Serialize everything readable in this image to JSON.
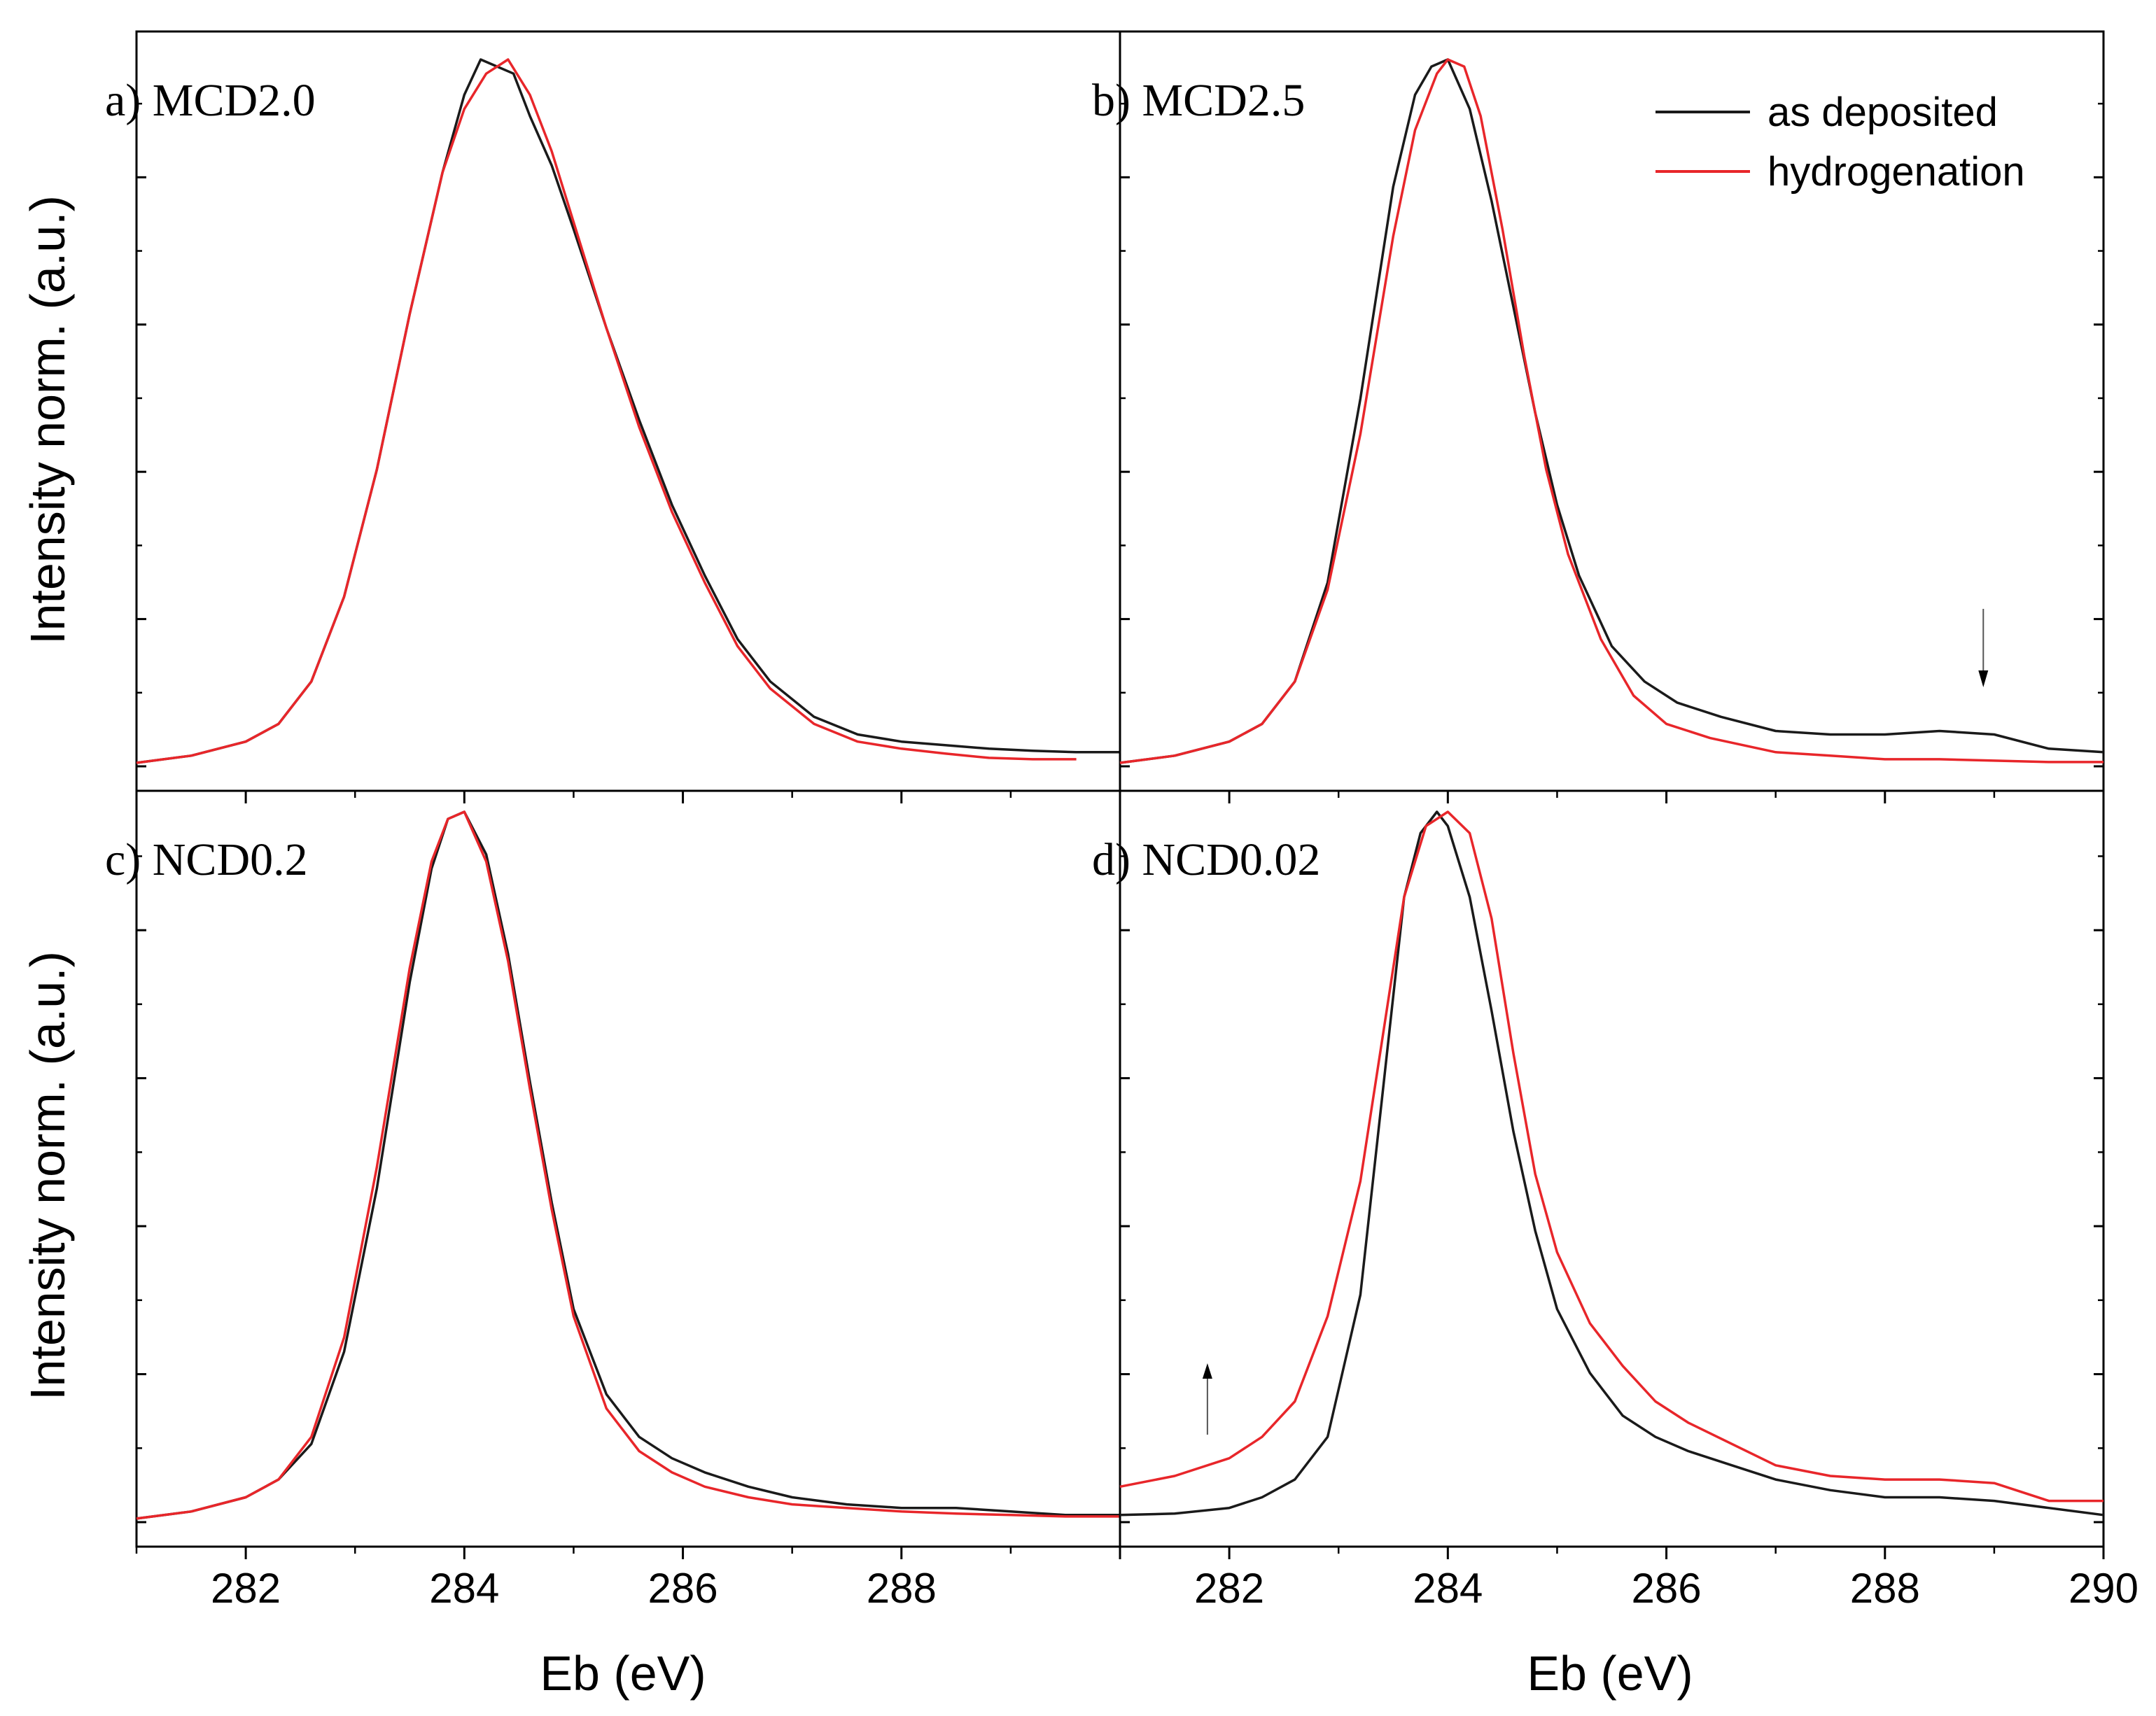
{
  "chart_data": {
    "type": "line",
    "title": "",
    "xlabel": "Eb (eV)",
    "ylabel": "Intensity norm. (a.u.)",
    "xlim": [
      281,
      290
    ],
    "ylim": [
      0,
      1
    ],
    "x_ticks": [
      "282",
      "284",
      "286",
      "288",
      "290"
    ],
    "legend": {
      "position": "top-right",
      "entries": [
        {
          "name": "as deposited",
          "color": "#1a1a1a"
        },
        {
          "name": "hydrogenation",
          "color": "#e8262a"
        }
      ]
    },
    "panels": [
      {
        "label": "a) MCD2.0",
        "series": [
          {
            "name": "as deposited",
            "color": "#1a1a1a",
            "x": [
              281.0,
              281.5,
              282.0,
              282.3,
              282.6,
              282.9,
              283.2,
              283.5,
              283.8,
              284.0,
              284.15,
              284.3,
              284.45,
              284.6,
              284.8,
              285.0,
              285.3,
              285.6,
              285.9,
              286.2,
              286.5,
              286.8,
              287.2,
              287.6,
              288.0,
              288.4,
              288.8,
              289.2,
              289.6,
              290.0
            ],
            "y": [
              0.005,
              0.015,
              0.035,
              0.06,
              0.12,
              0.24,
              0.42,
              0.64,
              0.84,
              0.95,
              1.0,
              0.99,
              0.98,
              0.92,
              0.85,
              0.76,
              0.62,
              0.49,
              0.37,
              0.27,
              0.18,
              0.12,
              0.07,
              0.045,
              0.035,
              0.03,
              0.025,
              0.022,
              0.02,
              0.02
            ]
          },
          {
            "name": "hydrogenation",
            "color": "#e8262a",
            "x": [
              281.0,
              281.5,
              282.0,
              282.3,
              282.6,
              282.9,
              283.2,
              283.5,
              283.8,
              284.0,
              284.2,
              284.4,
              284.6,
              284.8,
              285.0,
              285.3,
              285.6,
              285.9,
              286.2,
              286.5,
              286.8,
              287.2,
              287.6,
              288.0,
              288.4,
              288.8,
              289.2,
              289.6
            ],
            "y": [
              0.005,
              0.015,
              0.035,
              0.06,
              0.12,
              0.24,
              0.42,
              0.64,
              0.84,
              0.93,
              0.98,
              1.0,
              0.95,
              0.87,
              0.77,
              0.62,
              0.48,
              0.36,
              0.26,
              0.17,
              0.11,
              0.06,
              0.035,
              0.025,
              0.018,
              0.012,
              0.01,
              0.01
            ]
          }
        ]
      },
      {
        "label": "b) MCD2.5",
        "series": [
          {
            "name": "as deposited",
            "color": "#1a1a1a",
            "x": [
              281.0,
              281.5,
              282.0,
              282.3,
              282.6,
              282.9,
              283.2,
              283.5,
              283.7,
              283.85,
              284.0,
              284.2,
              284.4,
              284.6,
              284.8,
              285.0,
              285.2,
              285.5,
              285.8,
              286.1,
              286.5,
              287.0,
              287.5,
              288.0,
              288.5,
              289.0,
              289.5,
              290.0
            ],
            "y": [
              0.005,
              0.015,
              0.035,
              0.06,
              0.12,
              0.26,
              0.52,
              0.82,
              0.95,
              0.99,
              1.0,
              0.93,
              0.8,
              0.65,
              0.5,
              0.37,
              0.27,
              0.17,
              0.12,
              0.09,
              0.07,
              0.05,
              0.045,
              0.045,
              0.05,
              0.045,
              0.025,
              0.02
            ]
          },
          {
            "name": "hydrogenation",
            "color": "#e8262a",
            "x": [
              281.0,
              281.5,
              282.0,
              282.3,
              282.6,
              282.9,
              283.2,
              283.5,
              283.7,
              283.9,
              284.0,
              284.15,
              284.3,
              284.5,
              284.7,
              284.9,
              285.1,
              285.4,
              285.7,
              286.0,
              286.4,
              287.0,
              287.5,
              288.0,
              288.5,
              289.0,
              289.5,
              290.0
            ],
            "y": [
              0.005,
              0.015,
              0.035,
              0.06,
              0.12,
              0.25,
              0.47,
              0.75,
              0.9,
              0.98,
              1.0,
              0.99,
              0.92,
              0.76,
              0.58,
              0.42,
              0.3,
              0.18,
              0.1,
              0.06,
              0.04,
              0.02,
              0.015,
              0.01,
              0.01,
              0.008,
              0.006,
              0.006
            ]
          }
        ]
      },
      {
        "label": "c) NCD0.2",
        "series": [
          {
            "name": "as deposited",
            "color": "#1a1a1a",
            "x": [
              281.0,
              281.5,
              282.0,
              282.3,
              282.6,
              282.9,
              283.2,
              283.5,
              283.7,
              283.85,
              284.0,
              284.2,
              284.4,
              284.6,
              284.8,
              285.0,
              285.3,
              285.6,
              285.9,
              286.2,
              286.6,
              287.0,
              287.5,
              288.0,
              288.5,
              289.0,
              289.5,
              290.0
            ],
            "y": [
              0.005,
              0.015,
              0.035,
              0.06,
              0.11,
              0.24,
              0.47,
              0.76,
              0.92,
              0.99,
              1.0,
              0.94,
              0.8,
              0.62,
              0.45,
              0.3,
              0.18,
              0.12,
              0.09,
              0.07,
              0.05,
              0.035,
              0.025,
              0.02,
              0.02,
              0.015,
              0.01,
              0.01
            ]
          },
          {
            "name": "hydrogenation",
            "color": "#e8262a",
            "x": [
              281.0,
              281.5,
              282.0,
              282.3,
              282.6,
              282.9,
              283.2,
              283.5,
              283.7,
              283.85,
              284.0,
              284.2,
              284.4,
              284.6,
              284.8,
              285.0,
              285.3,
              285.6,
              285.9,
              286.2,
              286.6,
              287.0,
              287.5,
              288.0,
              288.5,
              289.0,
              289.5,
              290.0
            ],
            "y": [
              0.005,
              0.015,
              0.035,
              0.06,
              0.12,
              0.26,
              0.5,
              0.78,
              0.93,
              0.99,
              1.0,
              0.93,
              0.79,
              0.61,
              0.44,
              0.29,
              0.16,
              0.1,
              0.07,
              0.05,
              0.035,
              0.025,
              0.02,
              0.015,
              0.012,
              0.01,
              0.008,
              0.008
            ]
          }
        ]
      },
      {
        "label": "d) NCD0.02",
        "series": [
          {
            "name": "as deposited",
            "color": "#1a1a1a",
            "x": [
              281.0,
              281.5,
              282.0,
              282.3,
              282.6,
              282.9,
              283.2,
              283.4,
              283.6,
              283.75,
              283.9,
              284.0,
              284.2,
              284.4,
              284.6,
              284.8,
              285.0,
              285.3,
              285.6,
              285.9,
              286.2,
              286.6,
              287.0,
              287.5,
              288.0,
              288.5,
              289.0,
              289.5,
              290.0
            ],
            "y": [
              0.01,
              0.012,
              0.02,
              0.035,
              0.06,
              0.12,
              0.32,
              0.6,
              0.88,
              0.97,
              1.0,
              0.98,
              0.88,
              0.72,
              0.55,
              0.41,
              0.3,
              0.21,
              0.15,
              0.12,
              0.1,
              0.08,
              0.06,
              0.045,
              0.035,
              0.035,
              0.03,
              0.02,
              0.01
            ]
          },
          {
            "name": "hydrogenation",
            "color": "#e8262a",
            "x": [
              281.0,
              281.5,
              282.0,
              282.3,
              282.6,
              282.9,
              283.2,
              283.4,
              283.6,
              283.8,
              284.0,
              284.2,
              284.4,
              284.6,
              284.8,
              285.0,
              285.3,
              285.6,
              285.9,
              286.2,
              286.6,
              287.0,
              287.5,
              288.0,
              288.5,
              289.0,
              289.5,
              290.0
            ],
            "y": [
              0.05,
              0.065,
              0.09,
              0.12,
              0.17,
              0.29,
              0.48,
              0.68,
              0.88,
              0.98,
              1.0,
              0.97,
              0.85,
              0.66,
              0.49,
              0.38,
              0.28,
              0.22,
              0.17,
              0.14,
              0.11,
              0.08,
              0.065,
              0.06,
              0.06,
              0.055,
              0.03,
              0.03
            ]
          }
        ]
      }
    ],
    "annotations": [
      {
        "panel": "b) MCD2.5",
        "type": "arrow-down",
        "x": 288.9
      },
      {
        "panel": "d) NCD0.02",
        "type": "arrow-up",
        "x": 281.8
      }
    ]
  }
}
